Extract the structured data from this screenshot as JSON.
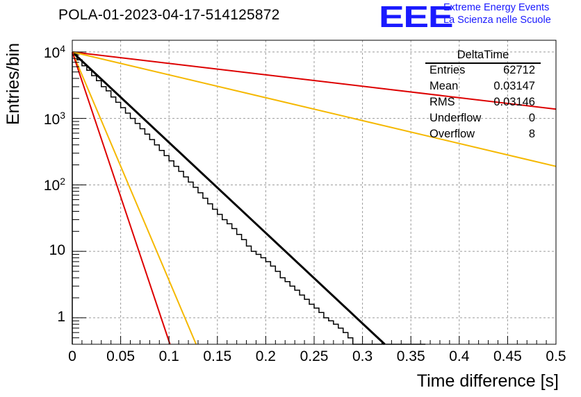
{
  "title": "POLA-01-2023-04-17-514125872",
  "logo": {
    "mark": "EEE",
    "line1": "Extreme Energy Events",
    "line2": "La Scienza nelle Scuole",
    "color": "#1a1aff"
  },
  "statbox": {
    "title": "DeltaTime",
    "rows": [
      {
        "key": "Entries",
        "value": "62712"
      },
      {
        "key": "Mean",
        "value": "0.03147"
      },
      {
        "key": "RMS",
        "value": "0.03146"
      },
      {
        "key": "Underflow",
        "value": "0"
      },
      {
        "key": "Overflow",
        "value": "8"
      }
    ]
  },
  "chart_data": {
    "type": "histogram",
    "xlabel": "Time difference [s]",
    "ylabel": "Entries/bin",
    "xlim": [
      0,
      0.5
    ],
    "ylim": [
      0.4,
      15000
    ],
    "yscale": "log",
    "grid": true,
    "x_ticks": [
      "0",
      "0.05",
      "0.1",
      "0.15",
      "0.2",
      "0.25",
      "0.3",
      "0.35",
      "0.4",
      "0.45",
      "0.5"
    ],
    "y_ticks": [
      {
        "value": 10000,
        "base": "10",
        "exp": "4"
      },
      {
        "value": 1000,
        "base": "10",
        "exp": "3"
      },
      {
        "value": 100,
        "base": "10",
        "exp": "2"
      },
      {
        "value": 10,
        "base": "10",
        "exp": ""
      },
      {
        "value": 1,
        "base": "1",
        "exp": ""
      }
    ],
    "histogram": {
      "bin_width": 0.005,
      "color": "#000000",
      "counts": [
        9500,
        7600,
        6200,
        5300,
        4400,
        3700,
        3000,
        2600,
        2100,
        1750,
        1450,
        1200,
        1000,
        840,
        700,
        580,
        480,
        400,
        330,
        275,
        230,
        190,
        160,
        132,
        110,
        92,
        76,
        63,
        52,
        43,
        36,
        30,
        26,
        22,
        18,
        15,
        12,
        10,
        9,
        8,
        7,
        6,
        5,
        4,
        3.5,
        3,
        2.6,
        2.2,
        1.9,
        1.6,
        1.4,
        1.2,
        1,
        0.9,
        0.8,
        0.7,
        0.6,
        0.5,
        0.4,
        0.4,
        0.4,
        0.4,
        0.4,
        0.4,
        0.4,
        0.4,
        0.4,
        0.4,
        0.4,
        0.4,
        0.4,
        0.4,
        0.4
      ]
    },
    "fits": [
      {
        "color": "#000000",
        "width": 3,
        "points": [
          [
            0,
            10000
          ],
          [
            0.323,
            0.4
          ]
        ]
      },
      {
        "color": "#dd0000",
        "width": 2,
        "points": [
          [
            0,
            10000
          ],
          [
            0.5,
            1380
          ]
        ]
      },
      {
        "color": "#f5b800",
        "width": 2,
        "points": [
          [
            0,
            10000
          ],
          [
            0.5,
            190
          ]
        ]
      },
      {
        "color": "#f5b800",
        "width": 2,
        "points": [
          [
            0,
            10000
          ],
          [
            0.128,
            0.4
          ]
        ]
      },
      {
        "color": "#dd0000",
        "width": 2,
        "points": [
          [
            0,
            10000
          ],
          [
            0.101,
            0.4
          ]
        ]
      }
    ]
  }
}
